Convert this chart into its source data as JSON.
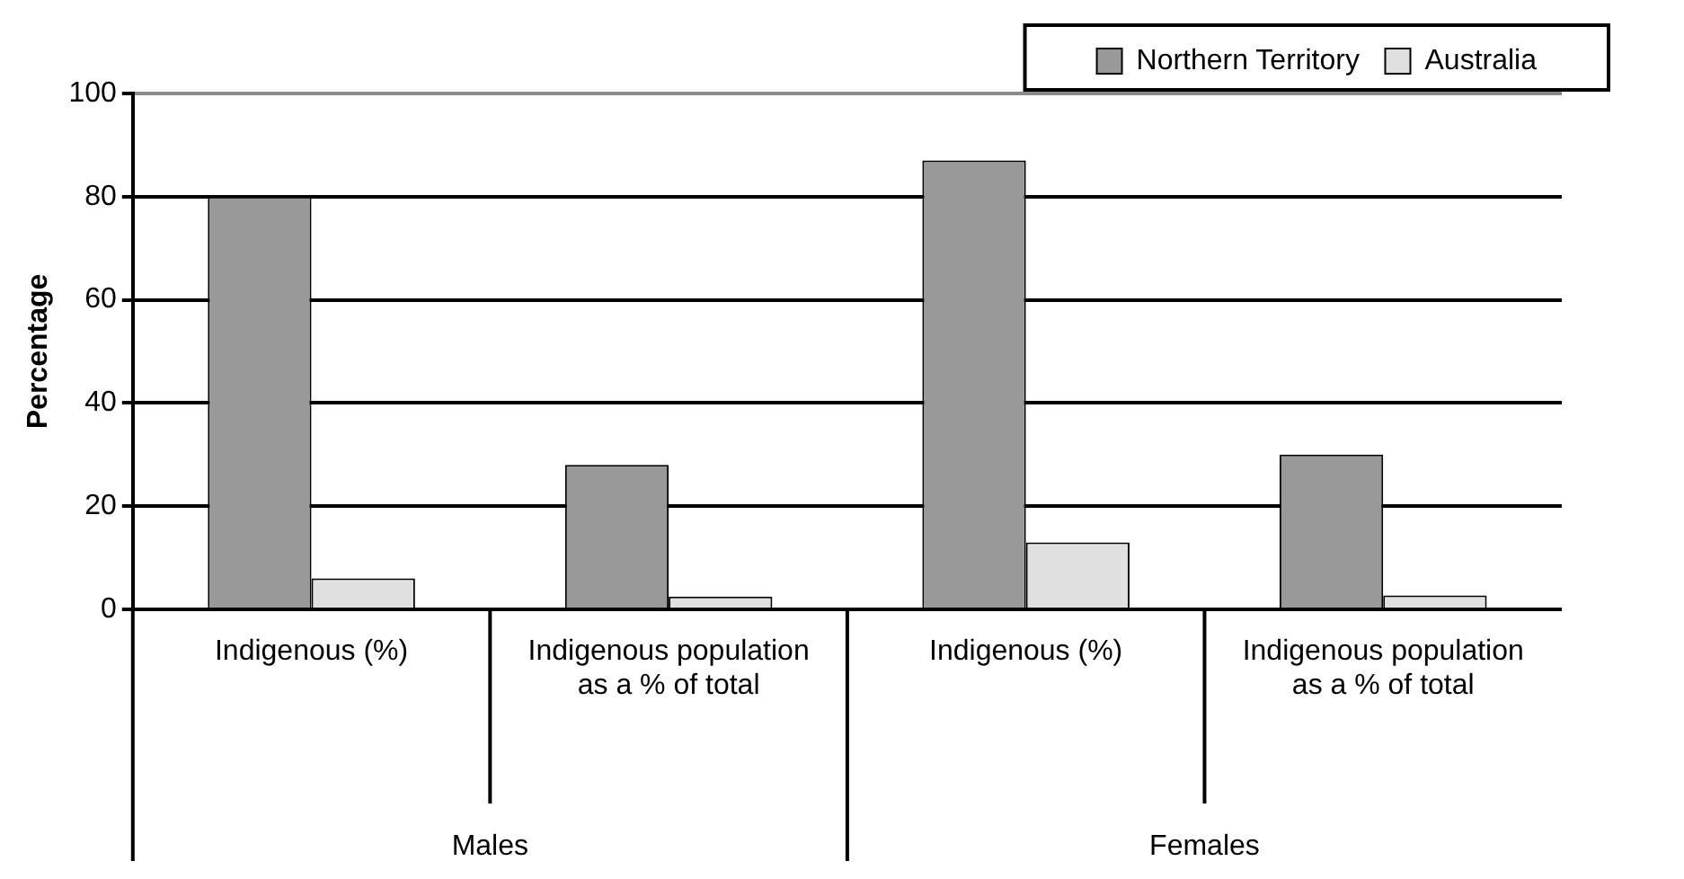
{
  "chart_data": {
    "type": "bar",
    "ylabel": "Percentage",
    "categories": [
      "Indigenous (%)",
      "Indigenous population as a % of total",
      "Indigenous (%)",
      "Indigenous population as a % of total"
    ],
    "series": [
      {
        "name": "Northern Territory",
        "color": "#999999",
        "values": [
          80,
          28,
          87,
          30
        ]
      },
      {
        "name": "Australia",
        "color": "#e0e0e0",
        "values": [
          6,
          2.5,
          13,
          2.7
        ]
      }
    ],
    "annotations": [
      "Males",
      "Females"
    ],
    "ylim": [
      0,
      100
    ],
    "yticks": [
      0,
      20,
      40,
      60,
      80,
      100
    ],
    "grid": "y",
    "legend": "top right"
  }
}
